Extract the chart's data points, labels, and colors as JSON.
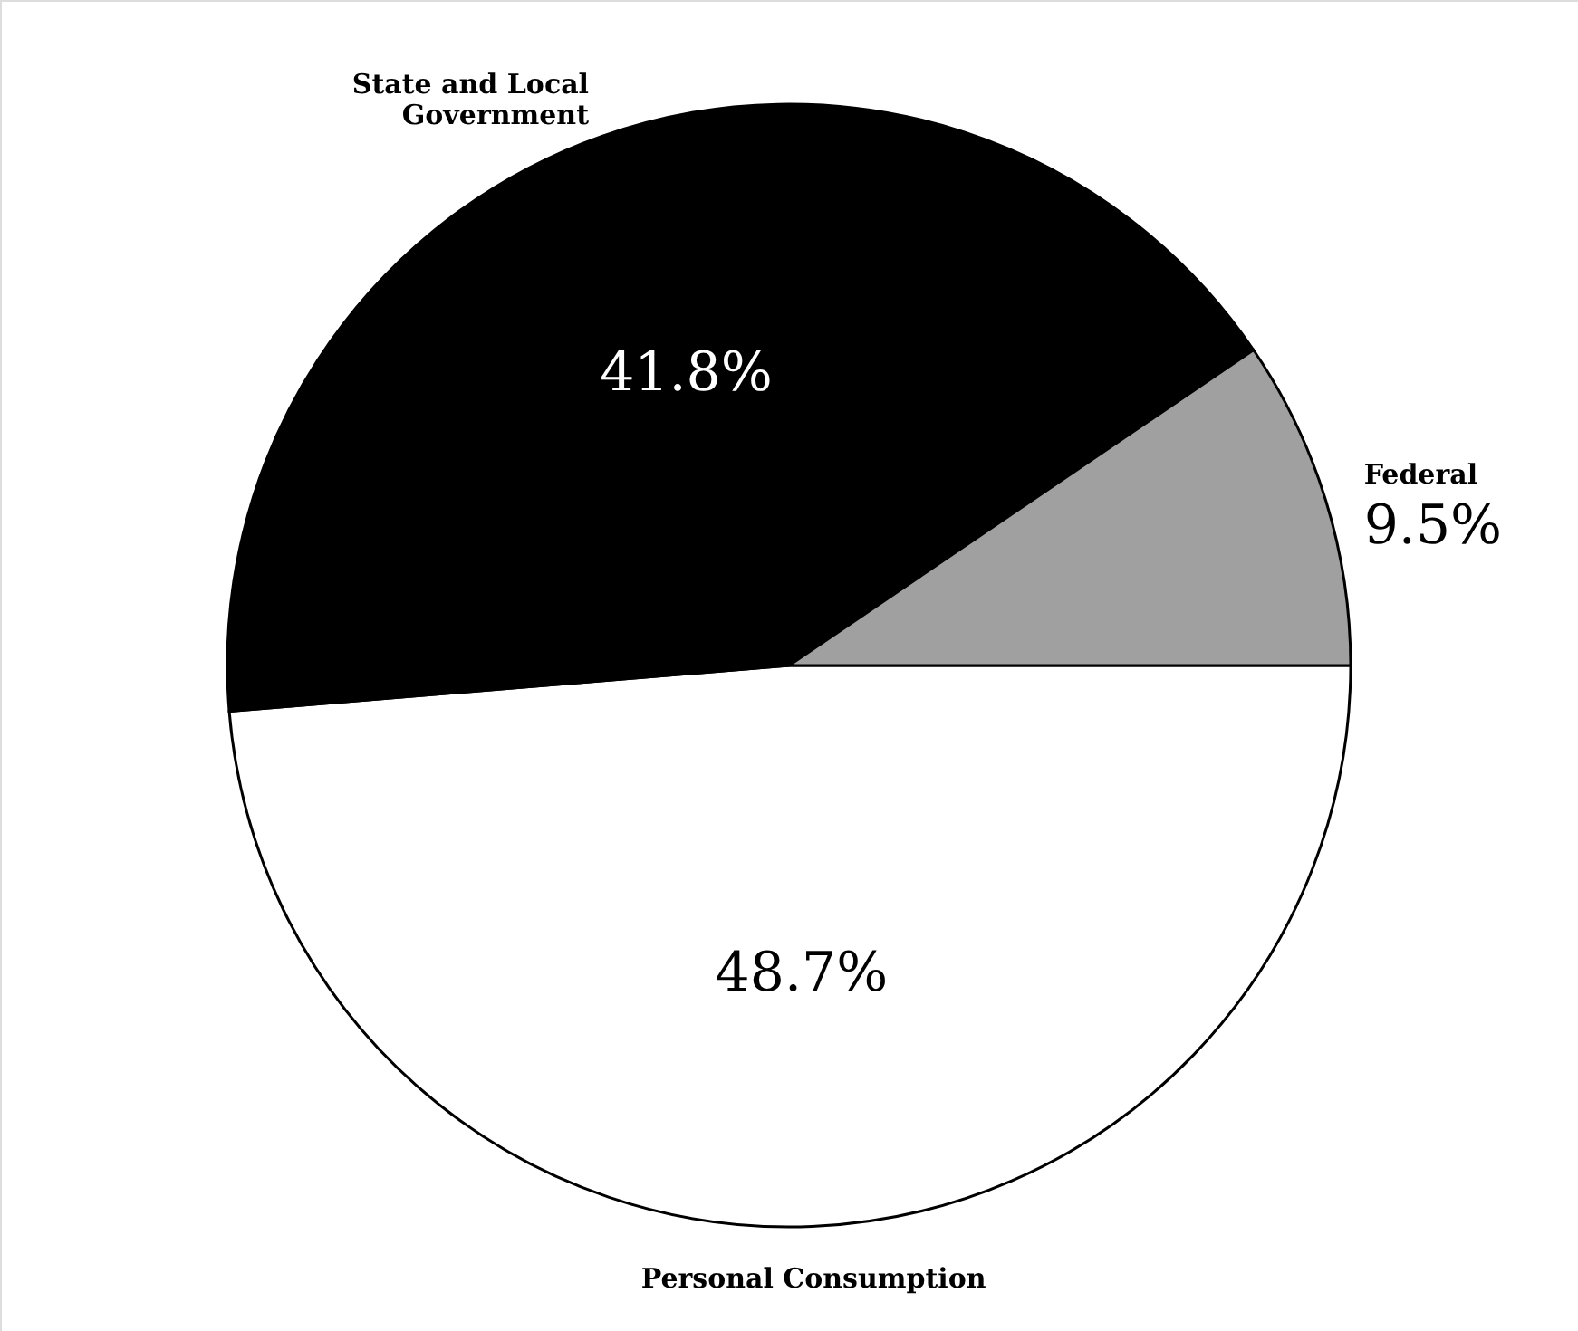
{
  "chart_data": {
    "type": "pie",
    "categories": [
      "Personal Consumption",
      "State and Local\nGovernment",
      "Federal"
    ],
    "values": [
      48.7,
      41.8,
      9.5
    ],
    "colors": [
      "#ffffff",
      "#000000",
      "#a0a0a0"
    ],
    "value_labels": [
      "48.7%",
      "41.8%",
      "9.5%"
    ]
  }
}
